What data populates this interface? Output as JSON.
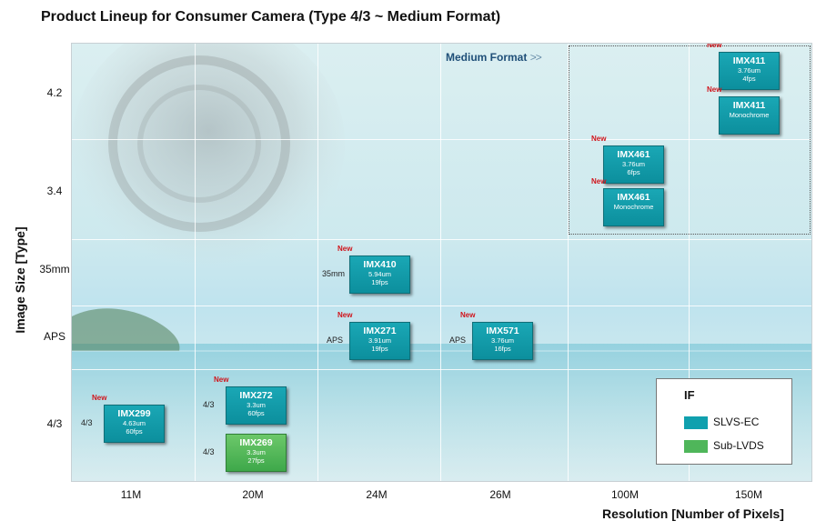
{
  "title": "Product Lineup for Consumer Camera (Type 4/3 ~ Medium Format)",
  "medium_format_label": "Medium Format",
  "medium_format_arrow": ">>",
  "colors": {
    "SLVS-EC": "#10a0ae",
    "Sub-LVDS": "#4fb65a",
    "new": "#d0141b"
  },
  "chart_data": {
    "type": "table",
    "xlabel": "Resolution  [Number of Pixels]",
    "ylabel": "Image Size [Type]",
    "x_categories": [
      "11M",
      "20M",
      "24M",
      "26M",
      "100M",
      "150M"
    ],
    "y_categories": [
      "4.2",
      "3.4",
      "35mm",
      "APS",
      "4/3"
    ],
    "legend_title": "IF",
    "legend": [
      "SLVS-EC",
      "Sub-LVDS"
    ],
    "products": [
      {
        "name": "IMX299",
        "specs": [
          "4.63um",
          "60fps"
        ],
        "x": "11M",
        "y": "4/3",
        "format": "4/3",
        "new": "New",
        "if": "SLVS-EC"
      },
      {
        "name": "IMX272",
        "specs": [
          "3.3um",
          "60fps"
        ],
        "x": "20M",
        "y": "4/3",
        "format": "4/3",
        "new": "New",
        "if": "SLVS-EC"
      },
      {
        "name": "IMX269",
        "specs": [
          "3.3um",
          "27fps"
        ],
        "x": "20M",
        "y": "4/3",
        "format": "4/3",
        "new": "",
        "if": "Sub-LVDS"
      },
      {
        "name": "IMX410",
        "specs": [
          "5.94um",
          "19fps"
        ],
        "x": "24M",
        "y": "35mm",
        "format": "35mm",
        "new": "New",
        "if": "SLVS-EC"
      },
      {
        "name": "IMX271",
        "specs": [
          "3.91um",
          "19fps"
        ],
        "x": "24M",
        "y": "APS",
        "format": "APS",
        "new": "New",
        "if": "SLVS-EC"
      },
      {
        "name": "IMX571",
        "specs": [
          "3.76um",
          "16fps"
        ],
        "x": "26M",
        "y": "APS",
        "format": "APS",
        "new": "New",
        "if": "SLVS-EC"
      },
      {
        "name": "IMX461",
        "specs": [
          "3.76um",
          "6fps"
        ],
        "x": "100M",
        "y": "3.4",
        "format": "",
        "new": "New",
        "if": "SLVS-EC"
      },
      {
        "name": "IMX461",
        "specs": [
          "Monochrome"
        ],
        "x": "100M",
        "y": "3.4",
        "format": "",
        "new": "New",
        "if": "SLVS-EC"
      },
      {
        "name": "IMX411",
        "specs": [
          "3.76um",
          "4fps"
        ],
        "x": "150M",
        "y": "4.2",
        "format": "",
        "new": "New",
        "if": "SLVS-EC"
      },
      {
        "name": "IMX411",
        "specs": [
          "Monochrome"
        ],
        "x": "150M",
        "y": "4.2",
        "format": "",
        "new": "New",
        "if": "SLVS-EC"
      }
    ]
  }
}
